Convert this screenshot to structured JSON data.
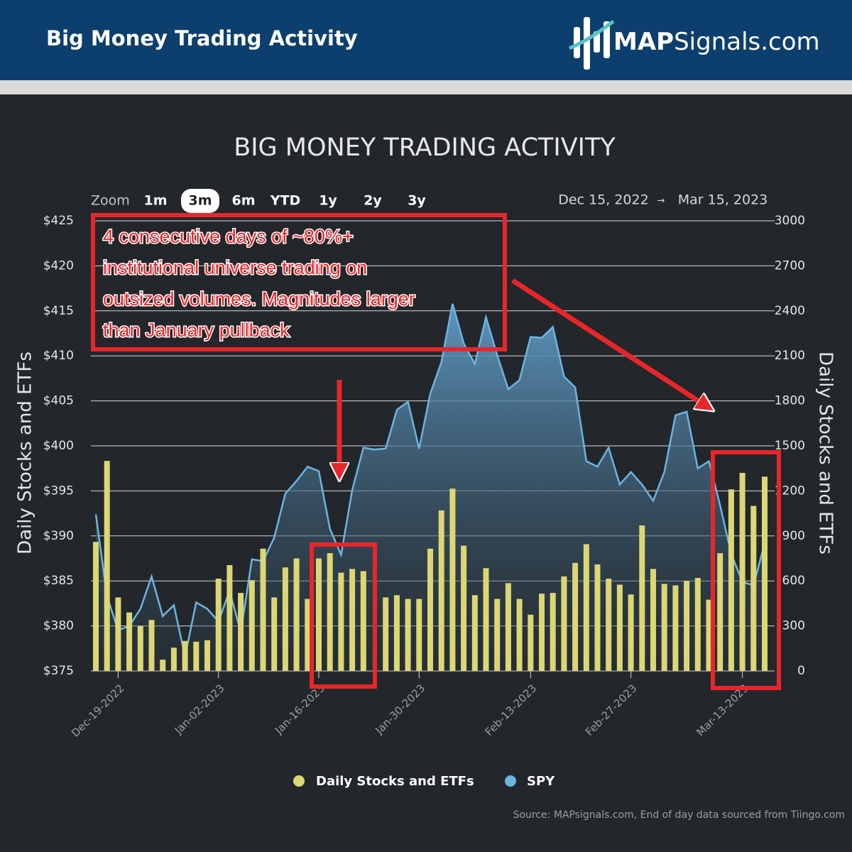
{
  "header": {
    "title": "Big Money Trading Activity",
    "logo_bold": "MAP",
    "logo_rest": "Signals.com"
  },
  "chart_data": {
    "type": "combo",
    "title": "BIG MONEY TRADING ACTIVITY",
    "zoom": {
      "label": "Zoom",
      "options": [
        "1m",
        "3m",
        "6m",
        "YTD",
        "1y",
        "2y",
        "3y"
      ],
      "selected": "3m"
    },
    "range_start": "Dec 15, 2022",
    "range_arrow": "→",
    "range_end": "Mar 15, 2023",
    "y_label": "Daily Stocks and ETFs",
    "y2_label": "Daily Stocks and ETFs",
    "categories": [
      null,
      null,
      "Dec-19-2022",
      null,
      null,
      null,
      null,
      null,
      null,
      null,
      null,
      "Jan-02-2023",
      null,
      null,
      null,
      null,
      null,
      null,
      null,
      null,
      "Jan-16-2023",
      null,
      null,
      null,
      null,
      null,
      null,
      null,
      null,
      "Jan-30-2023",
      null,
      null,
      null,
      null,
      null,
      null,
      null,
      null,
      null,
      "Feb-13-2023",
      null,
      null,
      null,
      null,
      null,
      null,
      null,
      null,
      "Feb-27-2023",
      null,
      null,
      null,
      null,
      null,
      null,
      null,
      null,
      null,
      "Mar-13-2023",
      null,
      null
    ],
    "ylim": [
      375,
      425
    ],
    "yticks": [
      {
        "value": 375,
        "label": "$375"
      },
      {
        "value": 380,
        "label": "$380"
      },
      {
        "value": 385,
        "label": "$385"
      },
      {
        "value": 390,
        "label": "$390"
      },
      {
        "value": 395,
        "label": "$395"
      },
      {
        "value": 400,
        "label": "$400"
      },
      {
        "value": 405,
        "label": "$405"
      },
      {
        "value": 410,
        "label": "$410"
      },
      {
        "value": 415,
        "label": "$415"
      },
      {
        "value": 420,
        "label": "$420"
      },
      {
        "value": 425,
        "label": "$425"
      }
    ],
    "y2lim": [
      0,
      3000
    ],
    "y2ticks": [
      0,
      300,
      600,
      900,
      1200,
      1500,
      1800,
      2100,
      2400,
      2700,
      3000
    ],
    "grid": true,
    "series": [
      {
        "name": "Daily Stocks and ETFs",
        "type": "bar",
        "axis": "y2",
        "color": "#dcd774",
        "values": [
          860,
          1400,
          490,
          390,
          300,
          340,
          75,
          155,
          200,
          195,
          205,
          615,
          705,
          520,
          605,
          815,
          490,
          690,
          750,
          480,
          750,
          785,
          655,
          680,
          665,
          null,
          490,
          505,
          480,
          480,
          815,
          1070,
          1215,
          835,
          505,
          685,
          480,
          585,
          480,
          375,
          515,
          520,
          630,
          720,
          845,
          710,
          615,
          575,
          510,
          970,
          680,
          580,
          570,
          600,
          620,
          475,
          785,
          1210,
          1320,
          1100,
          1295
        ]
      },
      {
        "name": "SPY",
        "type": "area",
        "axis": "y",
        "color": "#6cb4e2",
        "values": [
          392.4,
          383.3,
          379.5,
          380.0,
          381.9,
          385.5,
          381.1,
          382.3,
          376.6,
          382.6,
          381.9,
          380.5,
          383.9,
          379.3,
          387.4,
          387.2,
          389.8,
          394.7,
          396.1,
          397.7,
          397.2,
          390.8,
          387.9,
          395.1,
          399.8,
          399.6,
          399.7,
          404.0,
          404.9,
          399.7,
          405.8,
          409.3,
          415.8,
          411.4,
          409.1,
          414.3,
          410.1,
          406.3,
          407.3,
          412.1,
          412.0,
          413.2,
          407.7,
          406.5,
          398.3,
          397.7,
          399.8,
          395.7,
          397.1,
          395.7,
          393.9,
          397.1,
          403.4,
          403.8,
          397.5,
          398.3,
          393.4,
          388.0,
          384.9,
          384.5,
          389.2
        ]
      }
    ],
    "annotation": [
      "4 consecutive days of ~80%+",
      "institutional universe trading on",
      "outsized volumes. Magnitudes larger",
      "than January pullback"
    ]
  },
  "source": "Source: MAPsignals.com, End of day data sourced from Tiingo.com"
}
